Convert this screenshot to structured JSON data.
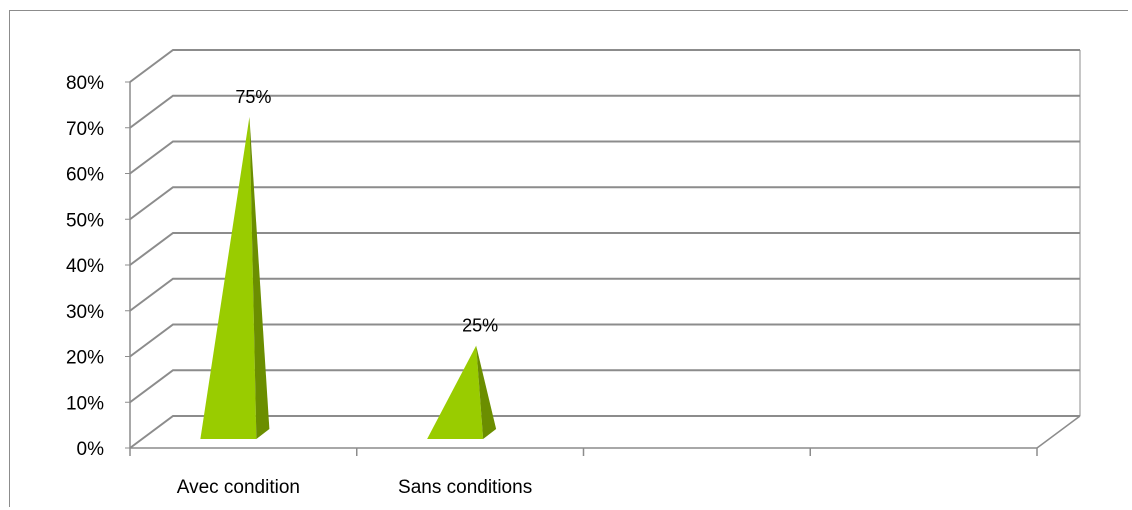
{
  "chart_data": {
    "type": "bar",
    "bar_shape": "3d-pyramid",
    "categories": [
      "Avec condition",
      "Sans conditions"
    ],
    "values": [
      75,
      25
    ],
    "data_labels": [
      "75%",
      "25%"
    ],
    "category_slots": 4,
    "ylim": [
      0,
      80
    ],
    "ytick_step": 10,
    "ytick_labels": [
      "0%",
      "10%",
      "20%",
      "30%",
      "40%",
      "50%",
      "60%",
      "70%",
      "80%"
    ],
    "grid": true,
    "legend": "none",
    "title": "",
    "xlabel": "",
    "ylabel": "",
    "colors": {
      "front": "#99cc00",
      "side": "#6b8e00",
      "grid": "#8c8c8c"
    }
  }
}
